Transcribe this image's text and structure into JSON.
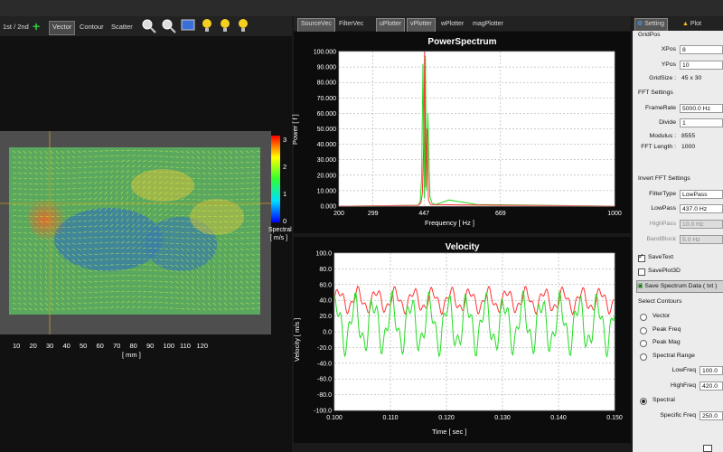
{
  "toolbar": {
    "first_second": "1st / 2nd",
    "vector": "Vector",
    "contour": "Contour",
    "scatter": "Scatter",
    "icons": [
      "zoom-in-icon",
      "zoom-out-icon",
      "image-icon",
      "bulb-icon",
      "bulb-icon",
      "bulb-icon"
    ]
  },
  "center_tabs": [
    "SourceVec",
    "FilterVec",
    "uPlotter",
    "vPlotter",
    "wPlotter",
    "magPlotter"
  ],
  "right_tabs": {
    "setting": "Setting",
    "plot": "Plot"
  },
  "left_plot": {
    "colorbar_label": "Spectral",
    "colorbar_unit": "[ m/s ]",
    "colorbar_ticks": [
      "0",
      "1",
      "2",
      "3"
    ],
    "x_ticks": [
      "10",
      "20",
      "30",
      "40",
      "50",
      "60",
      "70",
      "80",
      "90",
      "100",
      "110",
      "120"
    ],
    "x_unit": "[ mm ]"
  },
  "chart_data": [
    {
      "type": "line",
      "title": "PowerSpectrum",
      "xlabel": "Frequency [ Hz ]",
      "ylabel": "Power [ f ]",
      "xlim": [
        200,
        1000
      ],
      "ylim": [
        0,
        100
      ],
      "x_ticks": [
        "200",
        "299",
        "447",
        "669",
        "1000"
      ],
      "y_ticks": [
        "0.000",
        "10.000",
        "20.000",
        "30.000",
        "40.000",
        "50.000",
        "60.000",
        "70.000",
        "80.000",
        "90.000",
        "100.000"
      ],
      "series": [
        {
          "color": "#22dd22",
          "x": [
            200,
            430,
            436,
            440,
            444,
            448,
            451,
            454,
            458,
            464,
            470,
            480,
            520,
            600,
            1000
          ],
          "values": [
            0,
            0.5,
            3,
            18,
            92,
            5,
            97,
            10,
            60,
            6,
            2,
            1,
            4,
            1,
            0
          ]
        },
        {
          "color": "#ff3333",
          "x": [
            200,
            430,
            438,
            442,
            446,
            449,
            452,
            456,
            460,
            466,
            1000
          ],
          "values": [
            0,
            0.5,
            2,
            8,
            40,
            100,
            12,
            50,
            4,
            1,
            0
          ]
        }
      ]
    },
    {
      "type": "line",
      "title": "Velocity",
      "xlabel": "Time [ sec ]",
      "ylabel": "Velocity [ m/s ]",
      "xlim": [
        0.1,
        0.15
      ],
      "ylim": [
        -100,
        100
      ],
      "x_ticks": [
        "0.100",
        "0.110",
        "0.120",
        "0.130",
        "0.140",
        "0.150"
      ],
      "y_ticks": [
        "-100.0",
        "-80.0",
        "-60.0",
        "-40.0",
        "-20.0",
        "0.0",
        "20.0",
        "40.0",
        "60.0",
        "80.0",
        "100.0"
      ],
      "series": [
        {
          "color": "#ff3333",
          "mean": 40,
          "amp": 12
        },
        {
          "color": "#22dd22",
          "mean": 10,
          "amp": 28
        }
      ]
    }
  ],
  "settings": {
    "grid_pos_label": "GridPos",
    "xpos_label": "XPos",
    "xpos": "8",
    "ypos_label": "YPos",
    "ypos": "10",
    "gridsize_label": "GridSize :",
    "gridsize": "45 x 30",
    "fft_label": "FFT Settings",
    "framerate_label": "FrameRate",
    "framerate": "5000.0 Hz",
    "divide_label": "Divide",
    "divide": "1",
    "modulus_label": "Modulus :",
    "modulus": "8555",
    "fftlen_label": "FFT Length :",
    "fftlen": "1000",
    "invert_label": "Invert FFT Settings",
    "filtertype_label": "FilterType",
    "filtertype": "LowPass",
    "lowpass_label": "LowPass",
    "lowpass": "437.0 Hz",
    "highpass_label": "HighPass",
    "highpass": "10.0 Hz",
    "bandblock_label": "BandBlock",
    "bandblock": "5.0 Hz",
    "savetext": "SaveText",
    "saveplot3d": "SavePlot3D",
    "save_spectrum": "Save Spectrum Data ( txt )",
    "select_contours": "Select Contours",
    "vector": "Vector",
    "peak_freq": "Peak Freq",
    "peak_mag": "Peak Mag",
    "spectral_range": "Spectral Range",
    "lowfreq_label": "LowFreq",
    "lowfreq": "100.0",
    "highfreq_label": "HighFreq",
    "highfreq": "420.0",
    "spectral": "Spectral",
    "specific_freq_label": "Specific Freq",
    "specific_freq": "250.0"
  }
}
